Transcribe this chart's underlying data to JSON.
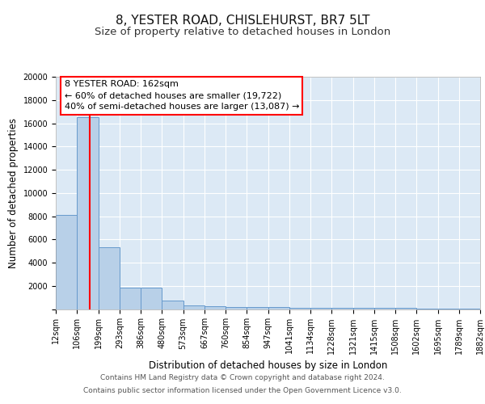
{
  "title_line1": "8, YESTER ROAD, CHISLEHURST, BR7 5LT",
  "title_line2": "Size of property relative to detached houses in London",
  "xlabel": "Distribution of detached houses by size in London",
  "ylabel": "Number of detached properties",
  "bin_labels": [
    "12sqm",
    "106sqm",
    "199sqm",
    "293sqm",
    "386sqm",
    "480sqm",
    "573sqm",
    "667sqm",
    "760sqm",
    "854sqm",
    "947sqm",
    "1041sqm",
    "1134sqm",
    "1228sqm",
    "1321sqm",
    "1415sqm",
    "1508sqm",
    "1602sqm",
    "1695sqm",
    "1789sqm",
    "1882sqm"
  ],
  "bin_edges": [
    12,
    106,
    199,
    293,
    386,
    480,
    573,
    667,
    760,
    854,
    947,
    1041,
    1134,
    1228,
    1321,
    1415,
    1508,
    1602,
    1695,
    1789,
    1882
  ],
  "bar_heights": [
    8100,
    16500,
    5300,
    1850,
    1850,
    700,
    300,
    250,
    200,
    180,
    150,
    130,
    110,
    100,
    90,
    80,
    70,
    60,
    50,
    40
  ],
  "bar_color": "#b8d0e8",
  "bar_edge_color": "#6699cc",
  "background_color": "#dce9f5",
  "grid_color": "#ffffff",
  "fig_background": "#ffffff",
  "red_line_x": 162,
  "annotation_box_text": "8 YESTER ROAD: 162sqm\n← 60% of detached houses are smaller (19,722)\n40% of semi-detached houses are larger (13,087) →",
  "ylim": [
    0,
    20000
  ],
  "yticks": [
    0,
    2000,
    4000,
    6000,
    8000,
    10000,
    12000,
    14000,
    16000,
    18000,
    20000
  ],
  "footer_line1": "Contains HM Land Registry data © Crown copyright and database right 2024.",
  "footer_line2": "Contains public sector information licensed under the Open Government Licence v3.0.",
  "title_fontsize": 11,
  "subtitle_fontsize": 9.5,
  "tick_fontsize": 7,
  "ylabel_fontsize": 8.5,
  "xlabel_fontsize": 8.5,
  "annotation_fontsize": 8,
  "footer_fontsize": 6.5
}
